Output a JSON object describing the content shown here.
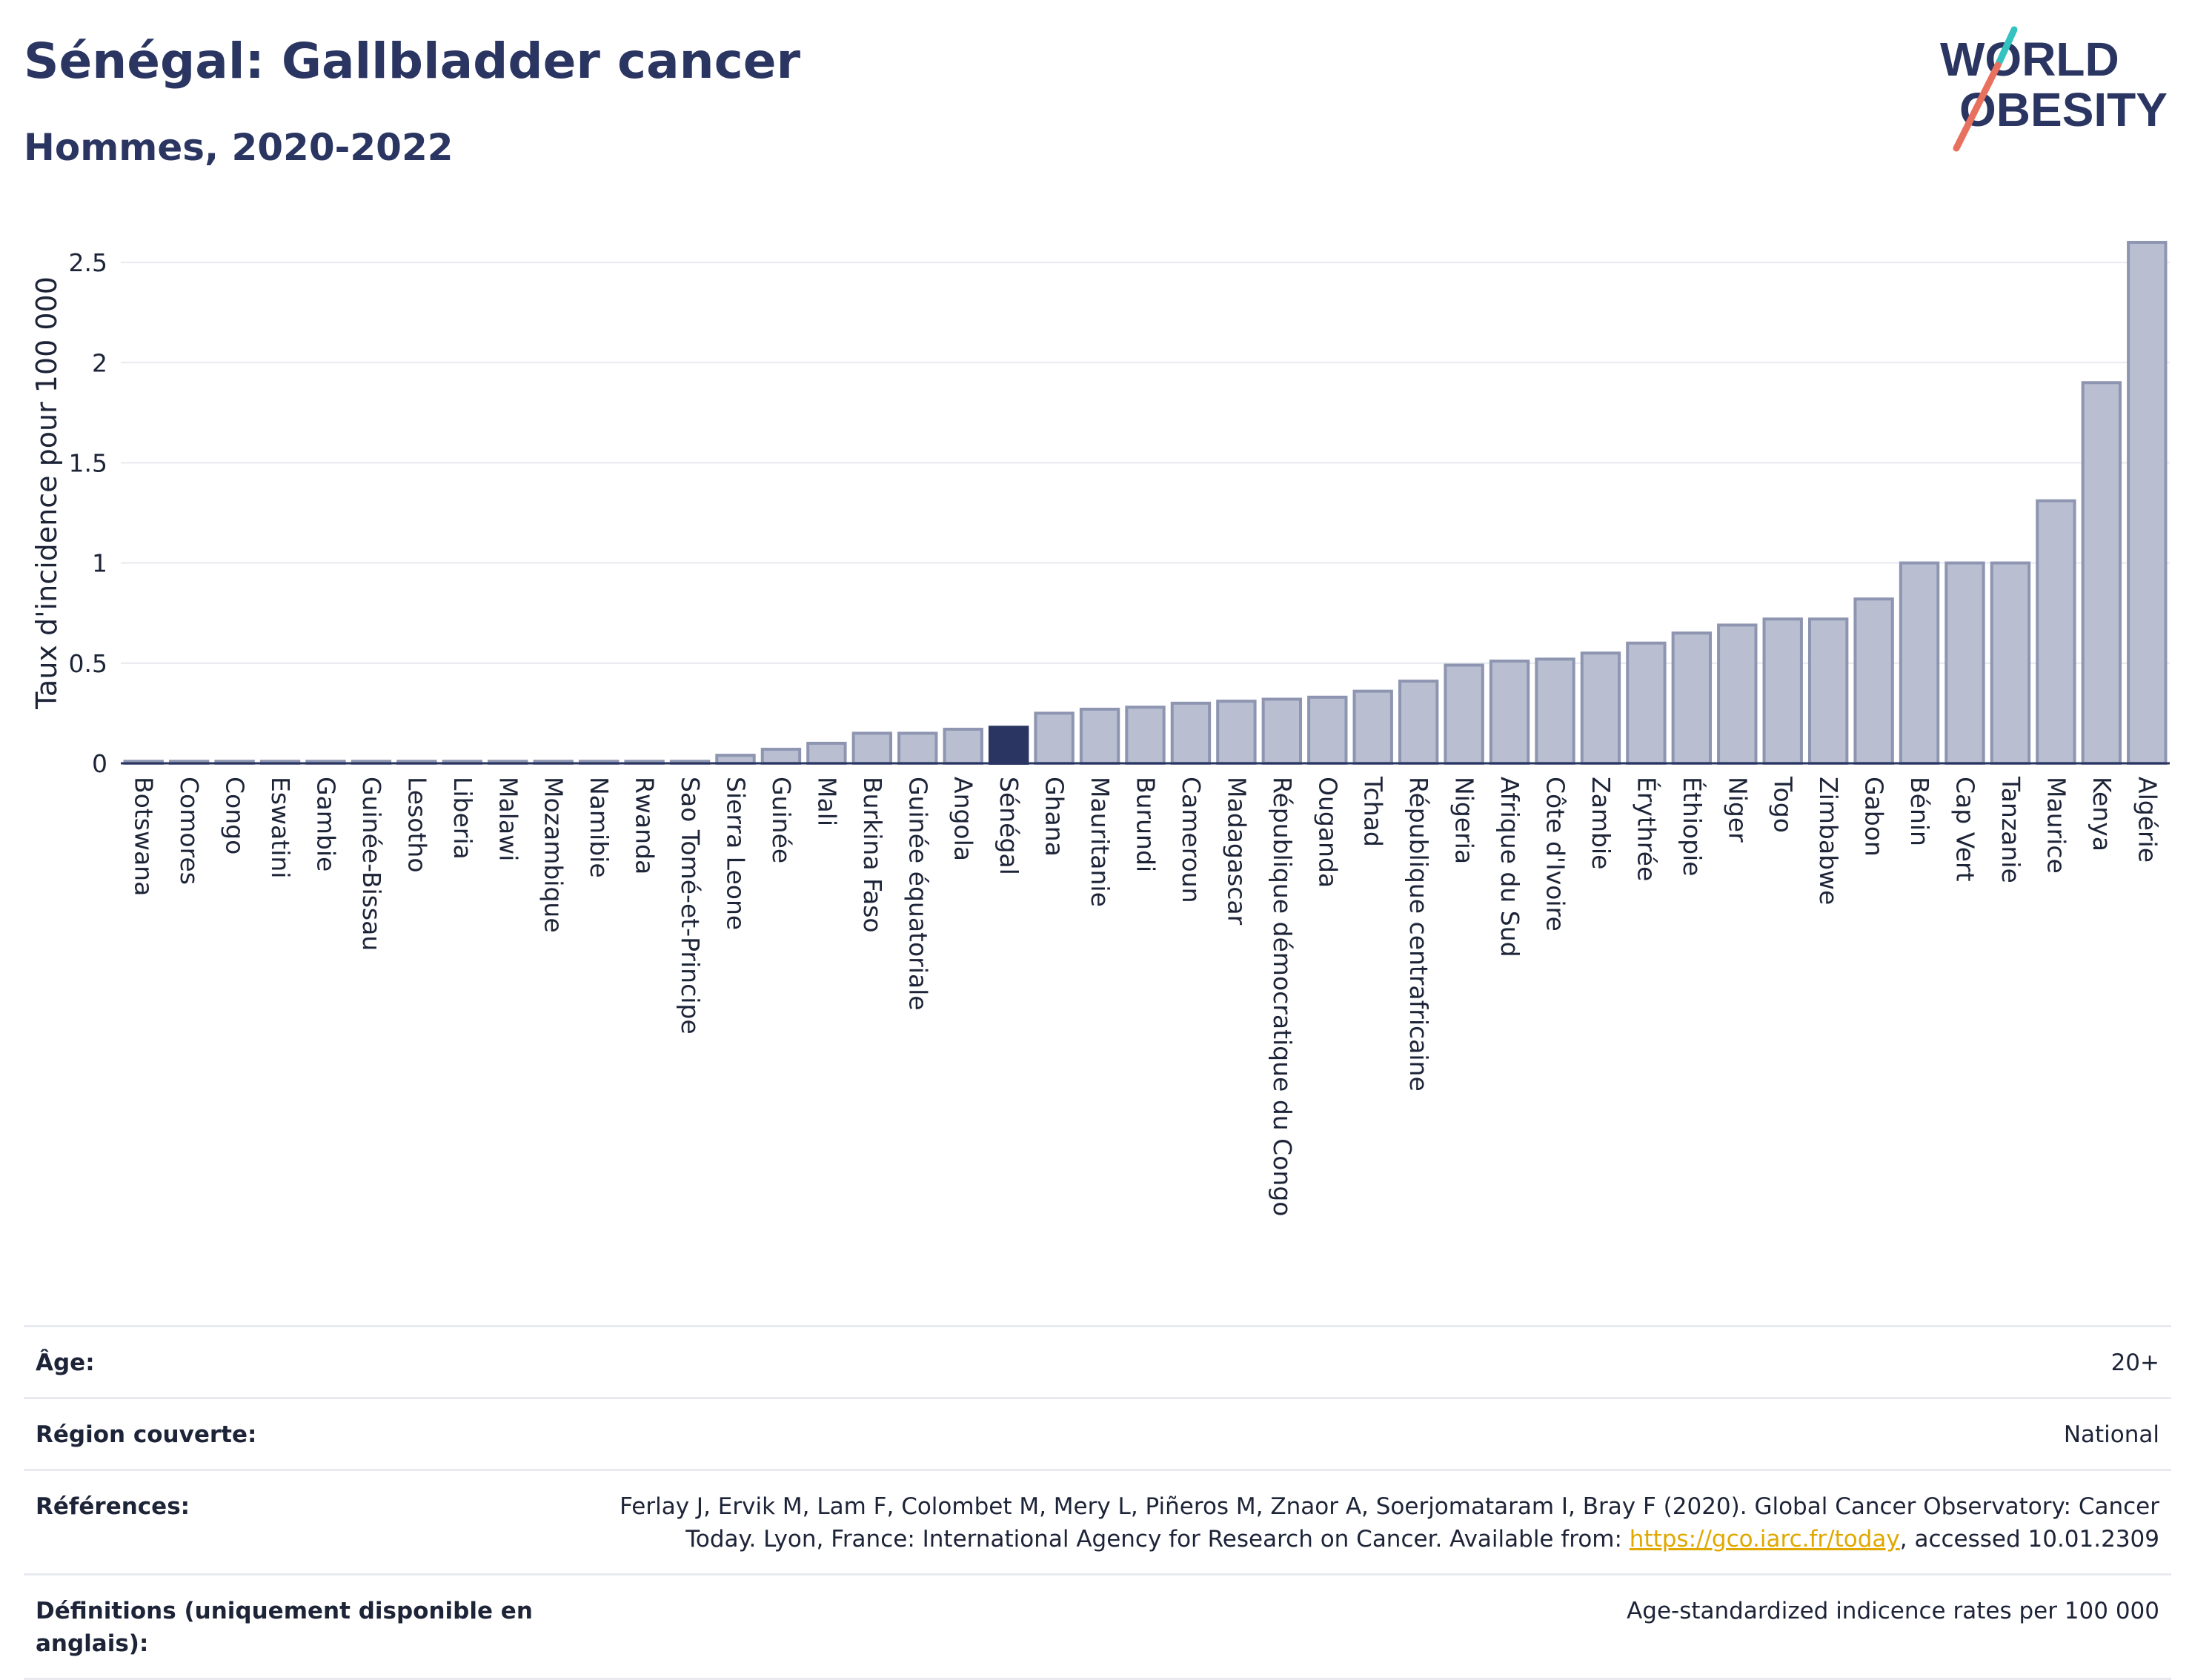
{
  "header": {
    "title": "Sénégal: Gallbladder cancer",
    "subtitle": "Hommes, 2020-2022"
  },
  "logo": {
    "line1": "WORLD",
    "line2": "OBESITY",
    "accent_colors": [
      "#34c3c0",
      "#e8705f"
    ]
  },
  "colors": {
    "bar": "#b9bfd1",
    "bar_stroke": "#8d95b1",
    "highlight": "#2a3561",
    "grid": "#e8eaf0",
    "axis": "#2a3561"
  },
  "chart_data": {
    "type": "bar",
    "ylabel": "Taux d'incidence pour 100 000",
    "ylim": [
      0,
      2.7
    ],
    "yticks": [
      0,
      0.5,
      1,
      1.5,
      2,
      2.5
    ],
    "ytick_labels": [
      "0",
      "0.5",
      "1",
      "1.5",
      "2",
      "2.5"
    ],
    "highlight": "Sénégal",
    "categories": [
      "Botswana",
      "Comores",
      "Congo",
      "Eswatini",
      "Gambie",
      "Guinée-Bissau",
      "Lesotho",
      "Liberia",
      "Malawi",
      "Mozambique",
      "Namibie",
      "Rwanda",
      "Sao Tomé-et-Principe",
      "Sierra Leone",
      "Guinée",
      "Mali",
      "Burkina Faso",
      "Guinée équatoriale",
      "Angola",
      "Sénégal",
      "Ghana",
      "Mauritanie",
      "Burundi",
      "Cameroun",
      "Madagascar",
      "République démocratique du Congo",
      "Ouganda",
      "Tchad",
      "République centrafricaine",
      "Nigeria",
      "Afrique du Sud",
      "Côte d'Ivoire",
      "Zambie",
      "Érythrée",
      "Éthiopie",
      "Niger",
      "Togo",
      "Zimbabwe",
      "Gabon",
      "Bénin",
      "Cap Vert",
      "Tanzanie",
      "Maurice",
      "Kenya",
      "Algérie"
    ],
    "values": [
      0.01,
      0.01,
      0.01,
      0.01,
      0.01,
      0.01,
      0.01,
      0.01,
      0.01,
      0.01,
      0.01,
      0.01,
      0.01,
      0.04,
      0.07,
      0.1,
      0.15,
      0.15,
      0.17,
      0.18,
      0.25,
      0.27,
      0.28,
      0.3,
      0.31,
      0.32,
      0.33,
      0.36,
      0.41,
      0.49,
      0.51,
      0.52,
      0.55,
      0.6,
      0.65,
      0.69,
      0.72,
      0.72,
      0.82,
      1.0,
      1.0,
      1.0,
      1.31,
      1.9,
      2.6
    ]
  },
  "footer": {
    "rows": [
      {
        "label": "Âge:",
        "value": "20+"
      },
      {
        "label": "Région couverte:",
        "value": "National"
      },
      {
        "label": "Références:",
        "value_pre": "Ferlay J, Ervik M, Lam F, Colombet M, Mery L, Piñeros M, Znaor A, Soerjomataram I, Bray F (2020). Global Cancer Observatory: Cancer Today. Lyon, France: International Agency for Research on Cancer. Available from: ",
        "link": "https://gco.iarc.fr/today",
        "value_post": ", accessed 10.01.2309"
      },
      {
        "label": "Définitions (uniquement disponible en anglais):",
        "value": "Age-standardized indicence rates per 100 000"
      }
    ]
  }
}
